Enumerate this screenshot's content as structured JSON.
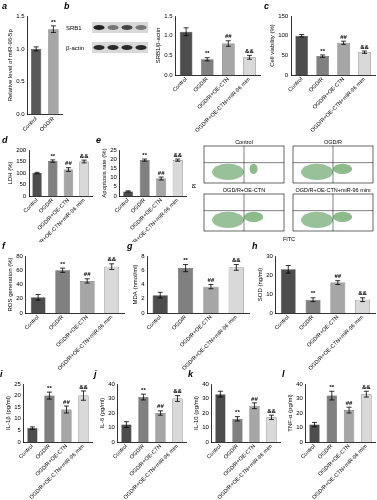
{
  "chart_data": [
    {
      "panel": "a",
      "type": "bar",
      "y_label": "Relative level of miR-96-5p",
      "categories": [
        "Control",
        "OGD/R"
      ],
      "values": [
        1.0,
        1.3
      ],
      "errors": [
        0.03,
        0.05
      ],
      "significance": [
        null,
        "**"
      ],
      "colors": [
        "#595959",
        "#a6a6a6"
      ],
      "ylim": [
        0,
        1.5
      ],
      "yticks": [
        {
          "value": 0,
          "label": "0.0"
        },
        {
          "value": 0.5,
          "label": "0.5"
        },
        {
          "value": 1,
          "label": "1.0"
        },
        {
          "value": 1.5,
          "label": "1.5"
        }
      ],
      "grid": false
    },
    {
      "type": "bar",
      "y_label": "SRB1/β-actin",
      "categories": [
        "Control",
        "OGD/R",
        "OGD/R+OE-CTN",
        "OGD/R+OE-CTN+miR-96 mim"
      ],
      "values": [
        1.1,
        0.4,
        0.8,
        0.45
      ],
      "errors": [
        0.1,
        0.04,
        0.07,
        0.05
      ],
      "significance": [
        null,
        "**",
        "##",
        "&&"
      ],
      "colors": [
        "#4d4d4d",
        "#808080",
        "#a6a6a6",
        "#d9d9d9"
      ],
      "ylim": [
        0,
        1.5
      ],
      "yticks": [
        {
          "value": 0,
          "label": "0.0"
        },
        {
          "value": 0.5,
          "label": "0.5"
        },
        {
          "value": 1,
          "label": "1.0"
        },
        {
          "value": 1.5,
          "label": "1.5"
        }
      ],
      "grid": false
    },
    {
      "panel": "c",
      "type": "bar",
      "y_label": "Cell viability (%)",
      "categories": [
        "Control",
        "OGD/R",
        "OGD/R+OE-CTN",
        "OGD/R+OE-CTN+miR-96 mim"
      ],
      "values": [
        100,
        48,
        82,
        58
      ],
      "errors": [
        3,
        3,
        4,
        3
      ],
      "significance": [
        null,
        "**",
        "##",
        "&&"
      ],
      "colors": [
        "#4d4d4d",
        "#808080",
        "#a6a6a6",
        "#d9d9d9"
      ],
      "ylim": [
        0,
        150
      ],
      "yticks": [
        0,
        50,
        100,
        150
      ],
      "grid": false
    },
    {
      "panel": "d",
      "type": "bar",
      "y_label": "LDH (%)",
      "categories": [
        "Control",
        "OGD/R",
        "OGD/R+OE-CTN",
        "OGD/R+OE-CTN+miR-96 mim"
      ],
      "values": [
        100,
        152,
        115,
        150
      ],
      "errors": [
        3,
        5,
        8,
        6
      ],
      "significance": [
        null,
        "**",
        "##",
        "&&"
      ],
      "colors": [
        "#4d4d4d",
        "#808080",
        "#a6a6a6",
        "#d9d9d9"
      ],
      "ylim": [
        0,
        200
      ],
      "yticks": [
        0,
        50,
        100,
        150,
        200
      ],
      "grid": false
    },
    {
      "panel": "e",
      "type": "bar",
      "y_label": "Apoptosis rate (%)",
      "categories": [
        "Control",
        "OGD/R",
        "OGD/R+OE-CTN",
        "OGD/R+OE-CTN+miR-96 mim"
      ],
      "values": [
        2.5,
        19.5,
        9.5,
        19.5
      ],
      "errors": [
        0.3,
        0.6,
        0.8,
        0.6
      ],
      "significance": [
        null,
        "**",
        "##",
        "&&"
      ],
      "colors": [
        "#4d4d4d",
        "#808080",
        "#a6a6a6",
        "#d9d9d9"
      ],
      "ylim": [
        0,
        25
      ],
      "yticks": [
        0,
        5,
        10,
        15,
        20,
        25
      ],
      "grid": false
    },
    {
      "panel": "f",
      "type": "bar",
      "y_label": "ROS generation (%)",
      "categories": [
        "Control",
        "OGD/R",
        "OGD/R+OE-CTN",
        "OGD/R+OE-CTN+miR-96 mim"
      ],
      "values": [
        22,
        60,
        45,
        65
      ],
      "errors": [
        4,
        3,
        3,
        4
      ],
      "significance": [
        null,
        "**",
        "##",
        "&&"
      ],
      "colors": [
        "#4d4d4d",
        "#808080",
        "#a6a6a6",
        "#d9d9d9"
      ],
      "ylim": [
        0,
        80
      ],
      "yticks": [
        0,
        20,
        40,
        60,
        80
      ],
      "grid": false
    },
    {
      "panel": "g",
      "type": "bar",
      "y_label": "MDA (nmol/ml)",
      "categories": [
        "Control",
        "OGD/R",
        "OGD/R+OE-CTN",
        "OGD/R+OE-CTN+miR-96 mim"
      ],
      "values": [
        2.5,
        6.3,
        3.7,
        6.4
      ],
      "errors": [
        0.4,
        0.5,
        0.3,
        0.4
      ],
      "significance": [
        null,
        "**",
        "##",
        "&&"
      ],
      "colors": [
        "#4d4d4d",
        "#808080",
        "#a6a6a6",
        "#d9d9d9"
      ],
      "ylim": [
        0,
        8
      ],
      "yticks": [
        0,
        2,
        4,
        6,
        8
      ],
      "grid": false
    },
    {
      "panel": "h",
      "type": "bar",
      "y_label": "SOD (ng/ml)",
      "categories": [
        "Control",
        "OGD/R",
        "OGD/R+OE-CTN",
        "OGD/R+OE-CTN+miR-96 mim"
      ],
      "values": [
        23,
        7,
        16,
        7
      ],
      "errors": [
        2,
        1,
        1,
        1
      ],
      "significance": [
        null,
        "**",
        "##",
        "&&"
      ],
      "colors": [
        "#4d4d4d",
        "#808080",
        "#a6a6a6",
        "#d9d9d9"
      ],
      "ylim": [
        0,
        30
      ],
      "yticks": [
        0,
        10,
        20,
        30
      ],
      "grid": false
    },
    {
      "panel": "i",
      "type": "bar",
      "y_label": "IL-1β (pg/ml)",
      "categories": [
        "Control",
        "OGD/R",
        "OGD/R+OE-CTN",
        "OGD/R+OE-CTN+miR-96 mim"
      ],
      "values": [
        6,
        20,
        14,
        20
      ],
      "errors": [
        0.5,
        1.5,
        1.5,
        2
      ],
      "significance": [
        null,
        "**",
        "##",
        "&&"
      ],
      "colors": [
        "#4d4d4d",
        "#808080",
        "#a6a6a6",
        "#d9d9d9"
      ],
      "ylim": [
        0,
        25
      ],
      "yticks": [
        0,
        5,
        10,
        15,
        20,
        25
      ],
      "grid": false
    },
    {
      "panel": "j",
      "type": "bar",
      "y_label": "IL-6 (pg/ml)",
      "categories": [
        "Control",
        "OGD/R",
        "OGD/R+OE-CTN",
        "OGD/R+OE-CTN+miR-96 mim"
      ],
      "values": [
        12,
        31,
        20,
        30
      ],
      "errors": [
        2,
        2,
        1.5,
        2
      ],
      "significance": [
        null,
        "**",
        "##",
        "&&"
      ],
      "colors": [
        "#4d4d4d",
        "#808080",
        "#a6a6a6",
        "#d9d9d9"
      ],
      "ylim": [
        0,
        40
      ],
      "yticks": [
        0,
        10,
        20,
        30,
        40
      ],
      "grid": false
    },
    {
      "panel": "k",
      "type": "bar",
      "y_label": "IL-10 (pg/ml)",
      "categories": [
        "Control",
        "OGD/R",
        "OGD/R+OE-CTN",
        "OGD/R+OE-CTN+miR-96 mim"
      ],
      "values": [
        33,
        16,
        25,
        17
      ],
      "errors": [
        2,
        1.5,
        2,
        1.5
      ],
      "significance": [
        null,
        "**",
        "##",
        "&&"
      ],
      "colors": [
        "#4d4d4d",
        "#808080",
        "#a6a6a6",
        "#d9d9d9"
      ],
      "ylim": [
        0,
        40
      ],
      "yticks": [
        0,
        10,
        20,
        30,
        40
      ],
      "grid": false
    },
    {
      "panel": "l",
      "type": "bar",
      "y_label": "TNF-α (pg/ml)",
      "categories": [
        "Control",
        "OGD/R",
        "OGD/R+OE-CTN",
        "OGD/R+OE-CTN+miR-96 mim"
      ],
      "values": [
        12,
        32,
        22,
        33
      ],
      "errors": [
        1.5,
        3,
        2,
        2
      ],
      "significance": [
        null,
        "**",
        "##",
        "&&"
      ],
      "colors": [
        "#4d4d4d",
        "#808080",
        "#a6a6a6",
        "#d9d9d9"
      ],
      "ylim": [
        0,
        40
      ],
      "yticks": [
        0,
        10,
        20,
        30,
        40
      ],
      "grid": false
    }
  ],
  "blot": {
    "panel": "b",
    "bands": [
      "SRB1",
      "β-actin"
    ]
  },
  "flow": {
    "x_label": "FITC",
    "y_label": "PI",
    "panels": [
      "Control",
      "OGD/R",
      "OGD/R+OE-CTN",
      "OGD/R+OE-CTN+miR-96 mim"
    ]
  }
}
